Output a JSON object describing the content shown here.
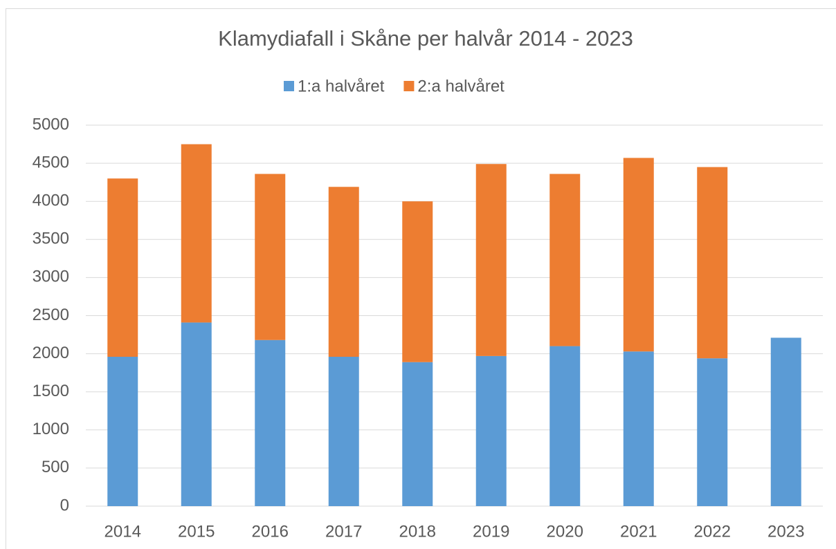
{
  "chart_data": {
    "type": "stacked-bar",
    "title": "Klamydiafall i Skåne per halvår 2014 - 2023",
    "categories": [
      "2014",
      "2015",
      "2016",
      "2017",
      "2018",
      "2019",
      "2020",
      "2021",
      "2022",
      "2023"
    ],
    "series": [
      {
        "name": "1:a halvåret",
        "color": "#5b9bd5",
        "values": [
          1960,
          2410,
          2180,
          1960,
          1890,
          1970,
          2100,
          2030,
          1940,
          2210
        ]
      },
      {
        "name": "2:a halvåret",
        "color": "#ed7d31",
        "values": [
          2340,
          2340,
          2180,
          2230,
          2110,
          2520,
          2260,
          2540,
          2510,
          null
        ]
      }
    ],
    "ylim": [
      0,
      5000
    ],
    "yticks": [
      0,
      500,
      1000,
      1500,
      2000,
      2500,
      3000,
      3500,
      4000,
      4500,
      5000
    ],
    "grid": true,
    "legend": "top"
  }
}
